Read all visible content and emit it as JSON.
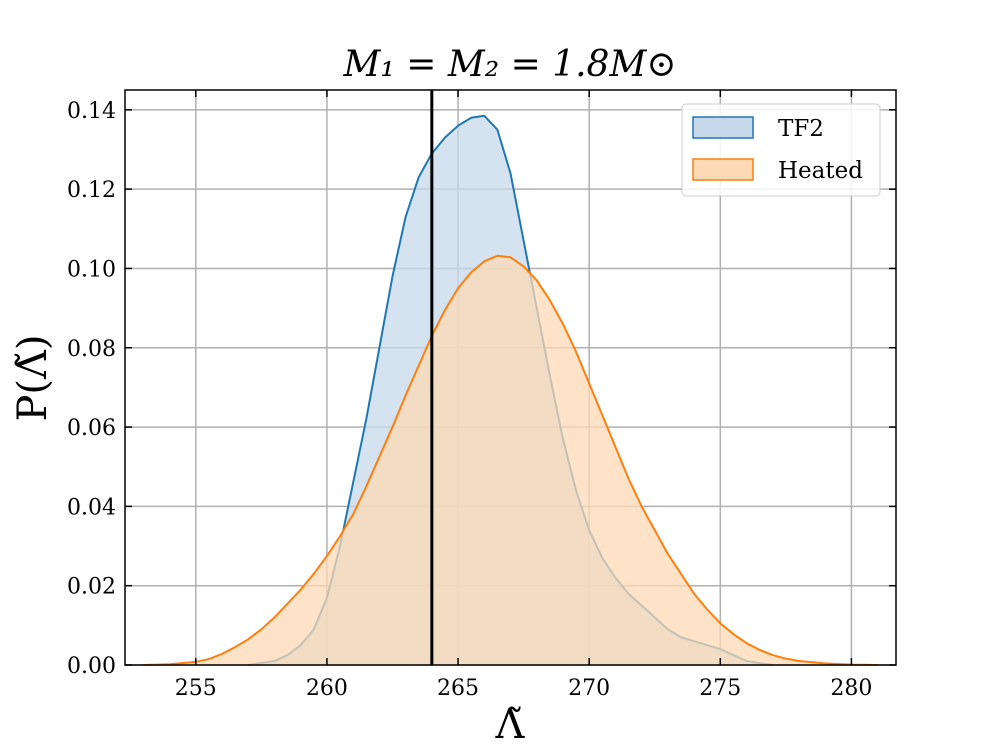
{
  "chart_data": {
    "type": "area",
    "title": "M₁ = M₂ = 1.8M⊙",
    "xlabel": "Λ̃",
    "ylabel": "P(Λ̃)",
    "xlim": [
      252.3,
      281.7
    ],
    "ylim": [
      0,
      0.145
    ],
    "xticks": [
      255,
      260,
      265,
      270,
      275,
      280
    ],
    "yticks": [
      0.0,
      0.02,
      0.04,
      0.06,
      0.08,
      0.1,
      0.12,
      0.14
    ],
    "xtick_labels": [
      "255",
      "260",
      "265",
      "270",
      "275",
      "280"
    ],
    "ytick_labels": [
      "0.00",
      "0.02",
      "0.04",
      "0.06",
      "0.08",
      "0.10",
      "0.12",
      "0.14"
    ],
    "grid": true,
    "legend_position": "top-right",
    "vline": {
      "x": 264.0,
      "color": "#000000"
    },
    "series": [
      {
        "name": "TF2",
        "color": "#1f77b4",
        "fill": "#c5d9ea",
        "x": [
          257,
          257.5,
          258,
          258.5,
          259,
          259.5,
          260,
          260.5,
          261,
          261.5,
          262,
          262.5,
          263,
          263.5,
          264,
          264.5,
          265,
          265.5,
          266,
          266.5,
          267,
          267.5,
          268,
          268.5,
          269,
          269.5,
          270,
          270.5,
          271,
          271.5,
          272,
          272.5,
          273,
          273.5,
          274,
          274.5,
          275,
          275.5,
          276,
          277
        ],
        "y": [
          0.0,
          0.0005,
          0.001,
          0.0025,
          0.005,
          0.009,
          0.017,
          0.03,
          0.046,
          0.062,
          0.08,
          0.098,
          0.113,
          0.123,
          0.129,
          0.133,
          0.136,
          0.138,
          0.1385,
          0.135,
          0.124,
          0.107,
          0.09,
          0.073,
          0.057,
          0.044,
          0.034,
          0.027,
          0.022,
          0.018,
          0.015,
          0.012,
          0.009,
          0.007,
          0.006,
          0.005,
          0.004,
          0.0025,
          0.001,
          0.0
        ]
      },
      {
        "name": "Heated",
        "color": "#ff7f0e",
        "fill": "#fdd9b5",
        "x": [
          253,
          254,
          255,
          255.5,
          256,
          256.5,
          257,
          257.5,
          258,
          258.5,
          259,
          259.5,
          260,
          260.5,
          261,
          261.5,
          262,
          262.5,
          263,
          263.5,
          264,
          264.5,
          265,
          265.5,
          266,
          266.5,
          267,
          267.5,
          268,
          268.5,
          269,
          269.5,
          270,
          270.5,
          271,
          271.5,
          272,
          272.5,
          273,
          273.5,
          274,
          274.5,
          275,
          275.5,
          276,
          276.5,
          277,
          277.5,
          278,
          279,
          280,
          281
        ],
        "y": [
          0.0,
          0.0002,
          0.0008,
          0.0015,
          0.0028,
          0.0045,
          0.0065,
          0.009,
          0.012,
          0.0155,
          0.019,
          0.023,
          0.0275,
          0.0325,
          0.038,
          0.045,
          0.0525,
          0.06,
          0.068,
          0.0755,
          0.083,
          0.0895,
          0.095,
          0.099,
          0.1018,
          0.1032,
          0.1028,
          0.1005,
          0.097,
          0.092,
          0.086,
          0.079,
          0.071,
          0.063,
          0.055,
          0.047,
          0.04,
          0.034,
          0.028,
          0.023,
          0.018,
          0.014,
          0.0105,
          0.0078,
          0.0055,
          0.0038,
          0.0025,
          0.0016,
          0.001,
          0.0004,
          0.0001,
          0.0
        ]
      }
    ]
  }
}
